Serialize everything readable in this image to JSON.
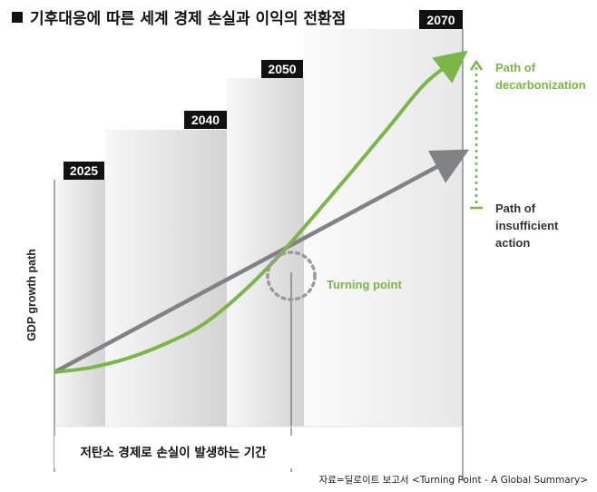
{
  "title": "기후대응에 따른 세계 경제 손실과 이익의 전환점",
  "source": "자료=딜로이트 보고서 <Turning Point  -  A Global Summary>",
  "period_label": "저탄소 경제로 손실이 발생하는 기간",
  "colors": {
    "green": "#7ab648",
    "gray": "#808285",
    "black": "#111111",
    "panel_light": "#f4f4f4",
    "panel_dark": "#d6d6d6"
  },
  "chart_data": {
    "type": "line",
    "title": "기후대응에 따른 세계 경제 손실과 이익의 전환점",
    "ylabel": "GDP growth path",
    "xlabel": "",
    "x_milestones": [
      "2025",
      "2040",
      "2050",
      "2070"
    ],
    "x_milestone_values": [
      2025,
      2040,
      2050,
      2070
    ],
    "xlim": [
      2015,
      2070
    ],
    "ylim": [
      0,
      100
    ],
    "series": [
      {
        "name": "Path of decarbonization",
        "color": "#7ab648",
        "x": [
          2015,
          2020,
          2025,
          2030,
          2035,
          2040,
          2045,
          2050,
          2055,
          2060,
          2065,
          2070
        ],
        "y": [
          0,
          1.5,
          4.5,
          9,
          15,
          24.4,
          36,
          49.3,
          63,
          77,
          91,
          100
        ]
      },
      {
        "name": "Path of insufficient action",
        "color": "#808285",
        "x": [
          2015,
          2070
        ],
        "y": [
          0,
          69
        ]
      }
    ],
    "annotations": [
      {
        "text": "Turning point",
        "x": 2049,
        "y": 47
      }
    ],
    "legend": [
      "Path of decarbonization",
      "Path of insufficient action"
    ]
  }
}
